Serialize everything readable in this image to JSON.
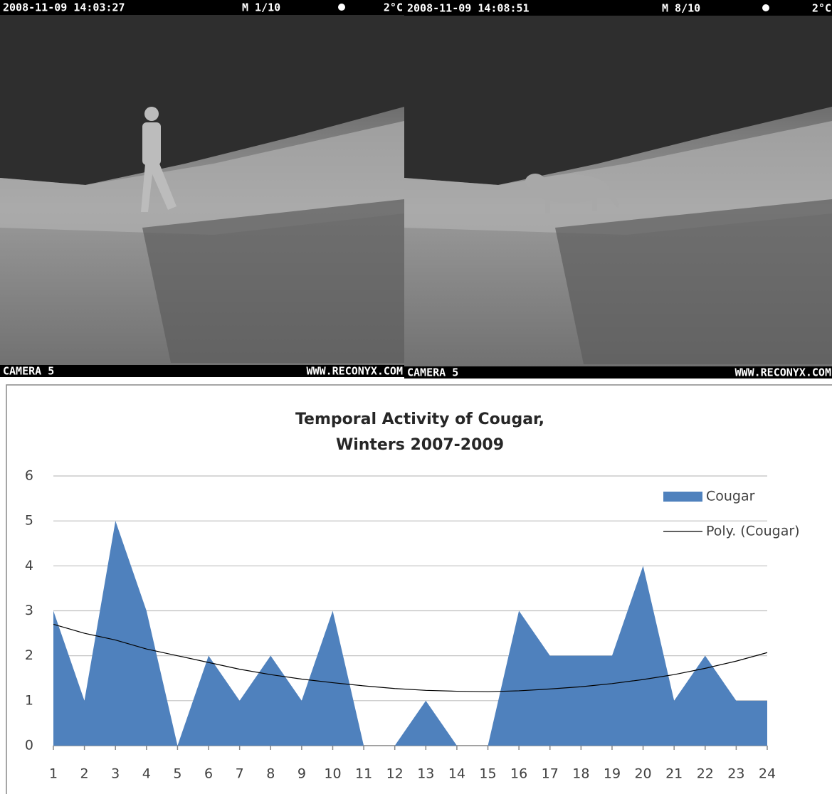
{
  "photos": [
    {
      "timestamp": "2008-11-09 14:03:27",
      "frame": "M 1/10",
      "temperature": "2°C",
      "camera": "CAMERA 5",
      "website": "WWW.RECONYX.COM"
    },
    {
      "timestamp": "2008-11-09 14:08:51",
      "frame": "M 8/10",
      "temperature": "2°C",
      "camera": "CAMERA 5",
      "website": "WWW.RECONYX.COM"
    }
  ],
  "chart_data": {
    "type": "area",
    "title": "Temporal Activity of Cougar,",
    "subtitle": "Winters 2007-2009",
    "x": [
      1,
      2,
      3,
      4,
      5,
      6,
      7,
      8,
      9,
      10,
      11,
      12,
      13,
      14,
      15,
      16,
      17,
      18,
      19,
      20,
      21,
      22,
      23,
      24
    ],
    "series": [
      {
        "name": "Cougar",
        "color": "#4f81bd",
        "values": [
          3,
          1,
          5,
          3,
          0,
          2,
          1,
          2,
          1,
          3,
          0,
          0,
          1,
          0,
          0,
          3,
          2,
          2,
          2,
          4,
          1,
          2,
          1,
          1
        ]
      },
      {
        "name": "Poly. (Cougar)",
        "color": "#000000",
        "type": "line",
        "values": [
          2.7,
          2.5,
          2.35,
          2.15,
          2.0,
          1.85,
          1.7,
          1.58,
          1.48,
          1.4,
          1.33,
          1.27,
          1.23,
          1.21,
          1.2,
          1.22,
          1.26,
          1.31,
          1.38,
          1.47,
          1.58,
          1.72,
          1.88,
          2.07
        ]
      }
    ],
    "xlim": [
      1,
      24
    ],
    "xticks": [
      1,
      2,
      3,
      4,
      5,
      6,
      7,
      8,
      9,
      10,
      11,
      12,
      13,
      14,
      15,
      16,
      17,
      18,
      19,
      20,
      21,
      22,
      23,
      24
    ],
    "ylim": [
      0,
      6
    ],
    "yticks": [
      0,
      1,
      2,
      3,
      4,
      5,
      6
    ],
    "grid": true,
    "legend": "right"
  }
}
